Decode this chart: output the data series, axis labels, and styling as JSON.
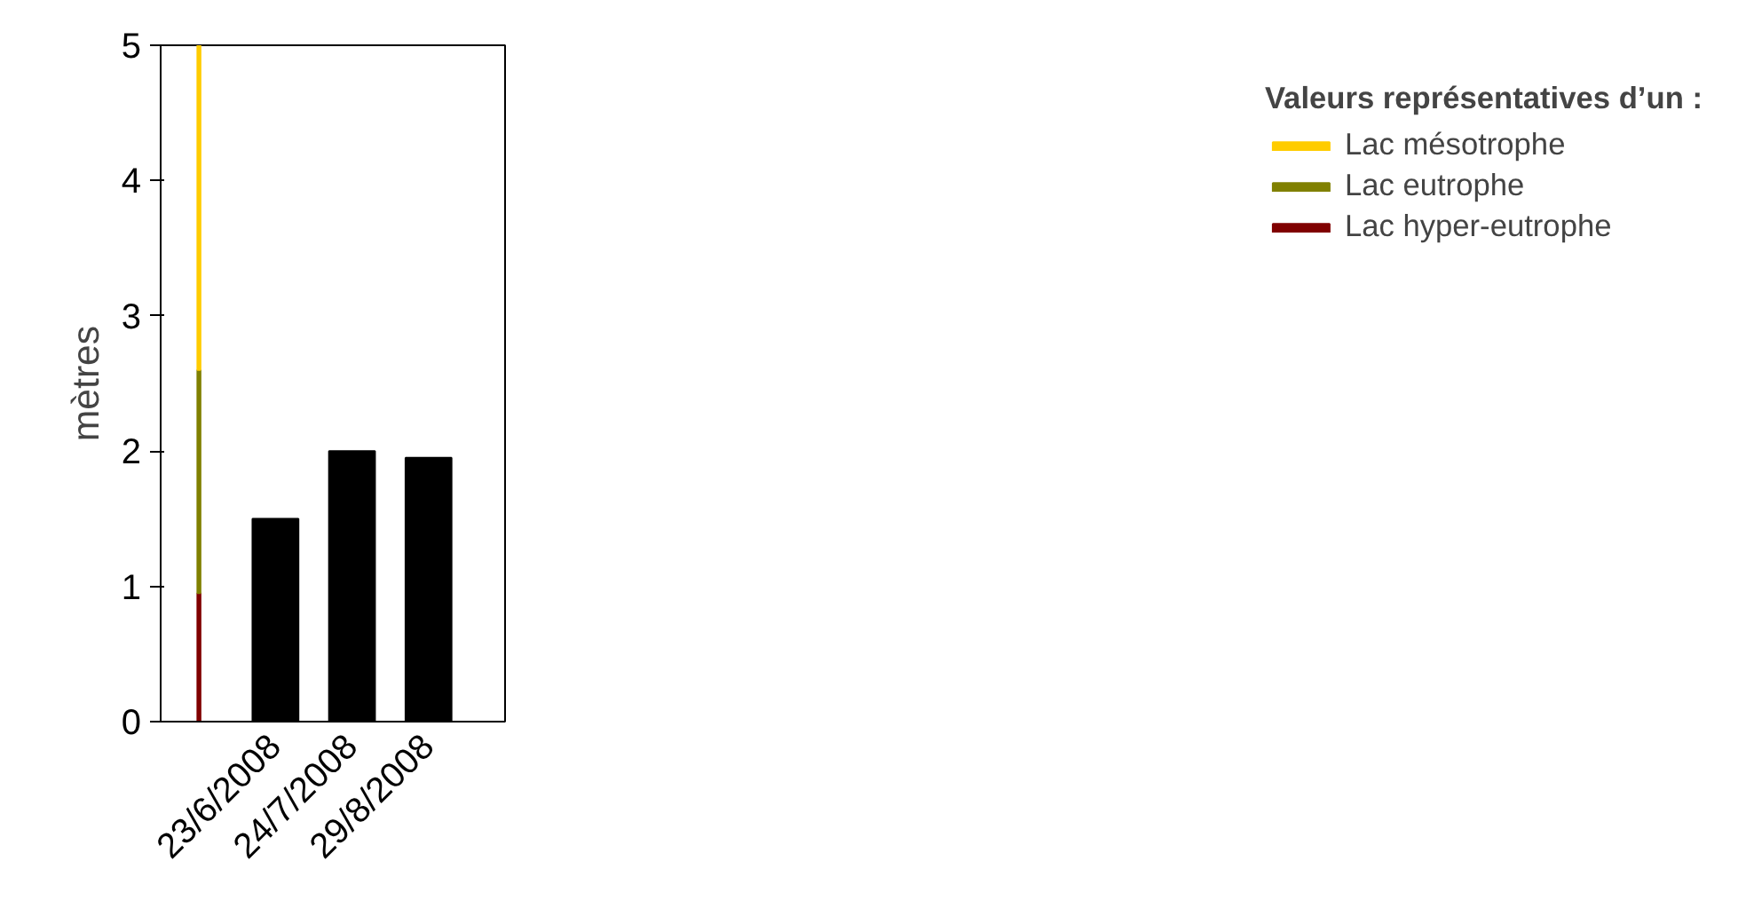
{
  "chart_data": {
    "type": "bar",
    "stacked": true,
    "ylabel": "mètres",
    "legend_title": "Valeurs représentatives d’un :",
    "legend": "right",
    "grid": false,
    "categories": [
      null,
      "23/6/2008",
      "24/7/2008",
      "29/8/2008"
    ],
    "ylim": [
      0,
      5
    ],
    "yticks": [
      0,
      1,
      2,
      3,
      4,
      5
    ],
    "series": [
      {
        "name": "Lac hyper-eutrophe",
        "color": "#800000",
        "values": [
          0.95,
          null,
          null,
          null
        ]
      },
      {
        "name": "Lac eutrophe",
        "color": "#808000",
        "values": [
          1.65,
          null,
          null,
          null
        ]
      },
      {
        "name": "Lac mésotrophe",
        "color": "#ffcc00",
        "values": [
          2.4,
          null,
          null,
          null
        ]
      },
      {
        "color": "#000000",
        "values": [
          null,
          1.5,
          2.0,
          1.95
        ]
      }
    ]
  }
}
